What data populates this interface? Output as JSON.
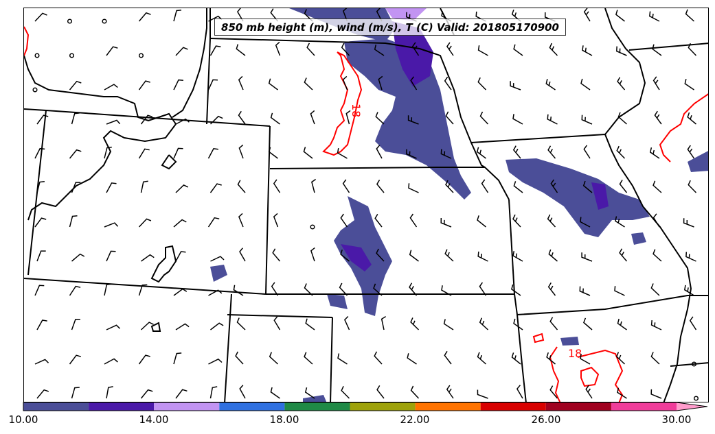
{
  "map": {
    "title": "850 mb height (m), wind (m/s), T (C) Valid: 201805170900",
    "contour_labels": [
      "18",
      "18"
    ],
    "colors": {
      "height_contour": "#000000",
      "temperature_contour": "#ff0000",
      "state_borders": "#000000",
      "wind_barbs": "#000000"
    }
  },
  "colorbar": {
    "tick_labels": [
      "10.00",
      "14.00",
      "18.00",
      "22.00",
      "26.00",
      "30.00"
    ],
    "bins": [
      {
        "from": 10,
        "to": 12,
        "color": "#4b4e98"
      },
      {
        "from": 12,
        "to": 14,
        "color": "#4a19a8"
      },
      {
        "from": 14,
        "to": 16,
        "color": "#c294f2"
      },
      {
        "from": 16,
        "to": 18,
        "color": "#2f70e0"
      },
      {
        "from": 18,
        "to": 20,
        "color": "#1f8a46"
      },
      {
        "from": 20,
        "to": 22,
        "color": "#9ea20a"
      },
      {
        "from": 22,
        "to": 24,
        "color": "#ff7300"
      },
      {
        "from": 24,
        "to": 26,
        "color": "#d80000"
      },
      {
        "from": 26,
        "to": 28,
        "color": "#a0001f"
      },
      {
        "from": 28,
        "to": 30,
        "color": "#f03c9a"
      },
      {
        "from": 30,
        "to": null,
        "color": "#ff9ccc"
      }
    ]
  }
}
